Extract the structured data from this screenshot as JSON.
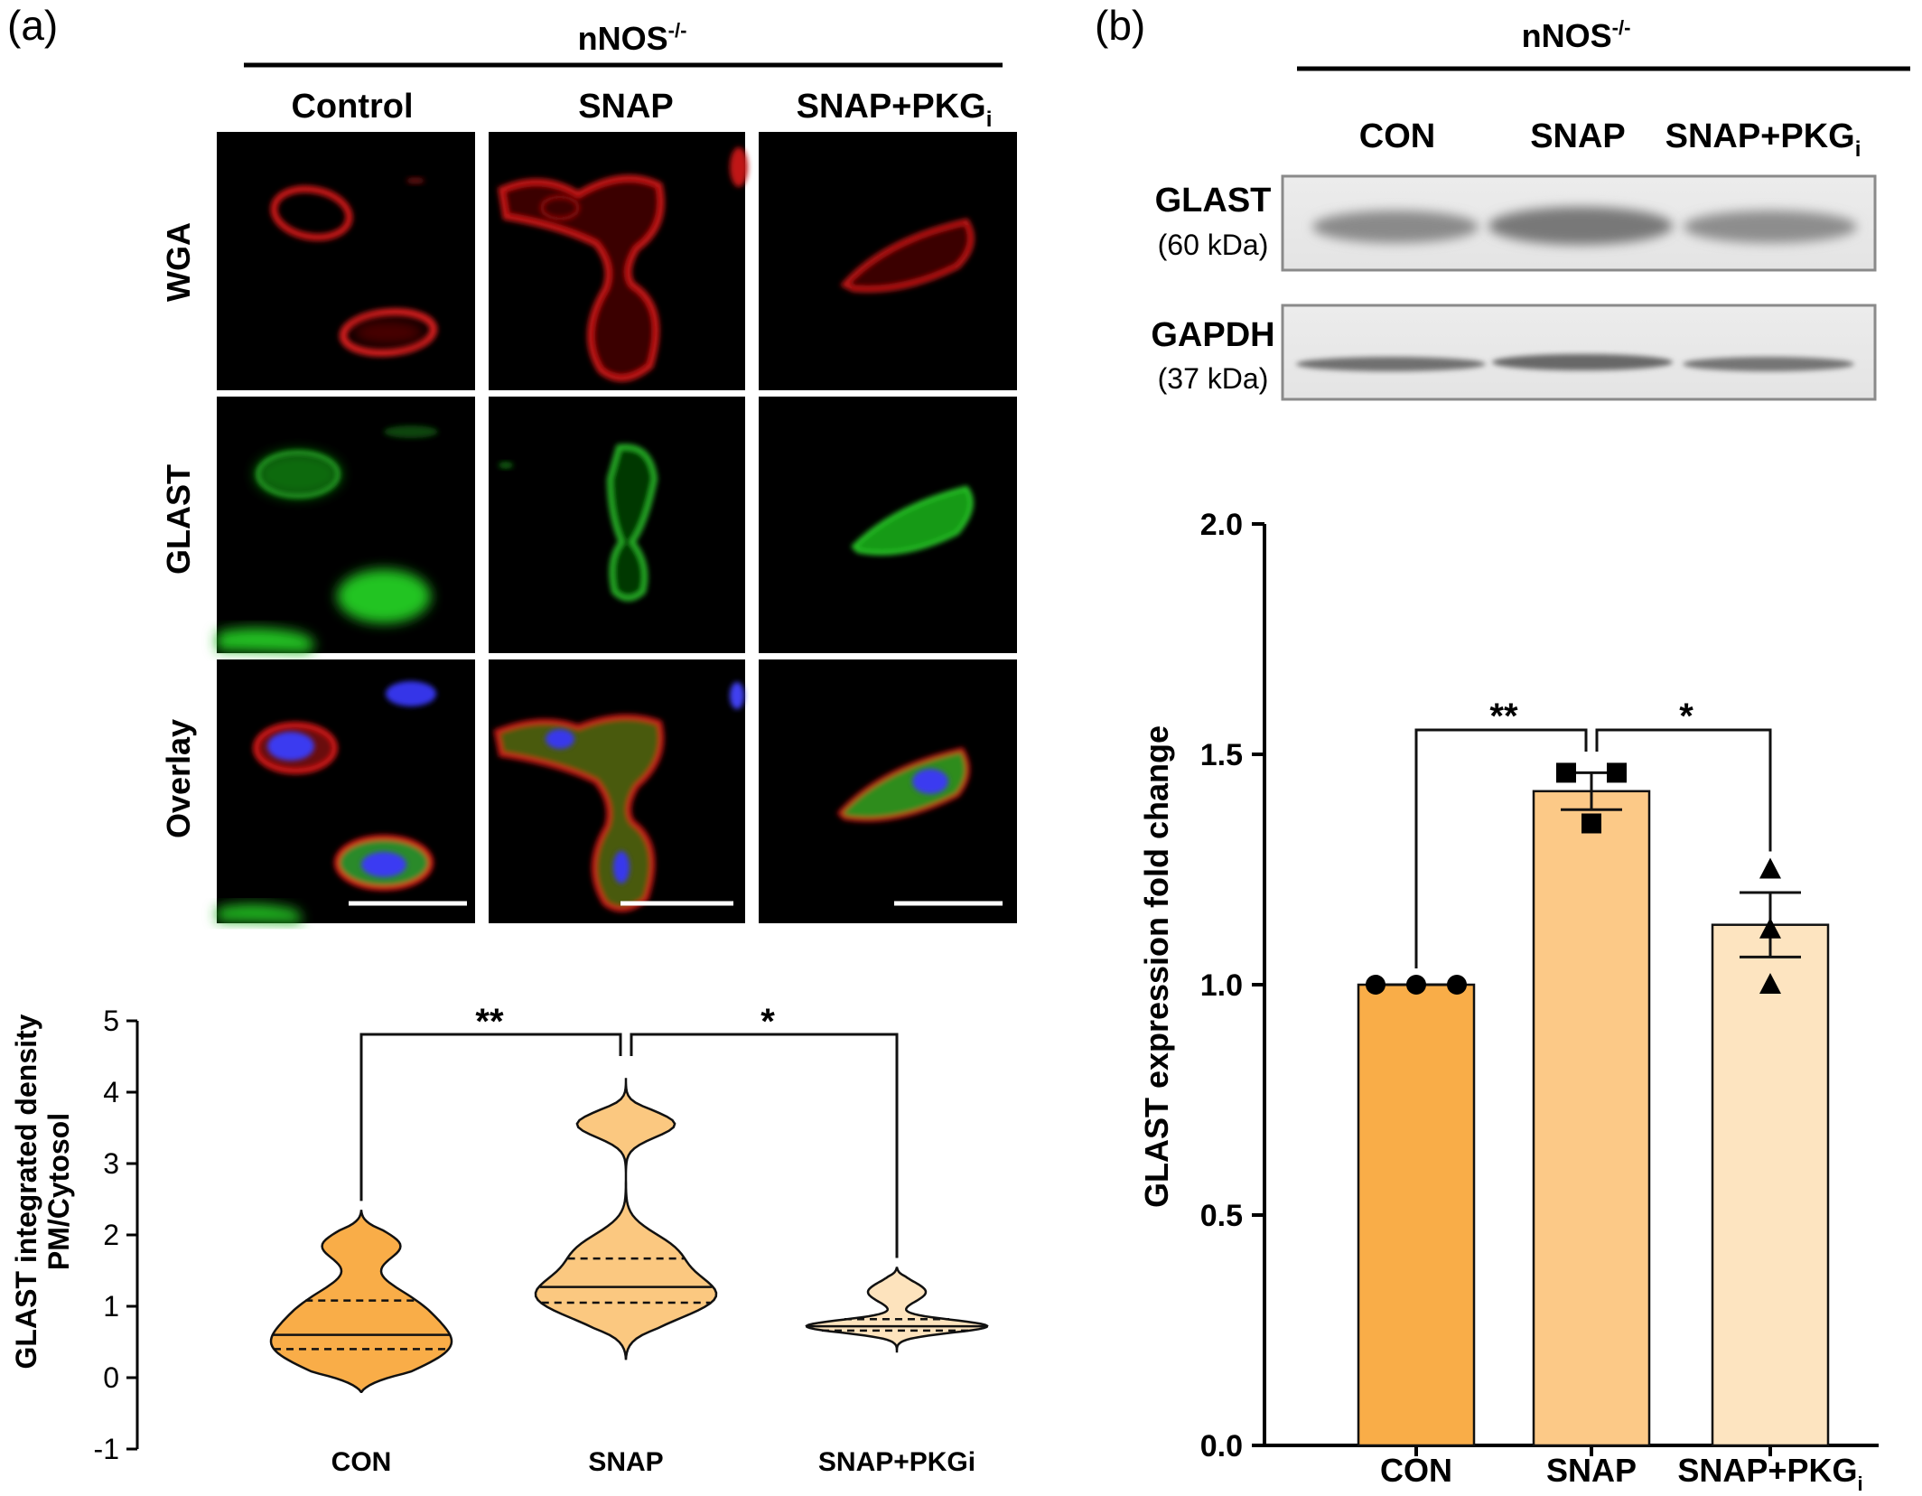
{
  "panel_a": {
    "label": "(a)",
    "header": "nNOS",
    "header_sup": "-/-",
    "columns": [
      "Control",
      "SNAP",
      "SNAP+PKG"
    ],
    "column_sub": "i",
    "rows": [
      "WGA",
      "GLAST",
      "Overlay"
    ],
    "violin": {
      "ylabel_line1": "GLAST integrated density",
      "ylabel_line2": "PM/Cytosol",
      "sig_left": "**",
      "sig_right": "*"
    }
  },
  "panel_b": {
    "label": "(b)",
    "header": "nNOS",
    "header_sup": "-/-",
    "lanes": [
      "CON",
      "SNAP",
      "SNAP+PKG"
    ],
    "lane_sub": "i",
    "blot1_name": "GLAST",
    "blot1_kda": "(60 kDa)",
    "blot2_name": "GAPDH",
    "blot2_kda": "(37 kDa)",
    "bar": {
      "ylabel": "GLAST expression fold change",
      "sig_left": "**",
      "sig_right": "*",
      "x_sub": "i"
    }
  },
  "chart_data": [
    {
      "type": "violin",
      "categories": [
        "CON",
        "SNAP",
        "SNAP+PKGi"
      ],
      "ylabel": "GLAST integrated density PM/Cytosol",
      "ylim": [
        -1,
        5
      ],
      "yticks": [
        -1,
        0,
        1,
        2,
        3,
        4,
        5
      ],
      "colors": [
        "#f9ad48",
        "#fbc880",
        "#fde3bd"
      ],
      "medians": [
        0.6,
        1.27,
        0.72
      ],
      "q1": [
        0.4,
        1.05,
        0.66
      ],
      "q3": [
        1.08,
        1.67,
        0.82
      ],
      "min": [
        -0.2,
        0.25,
        0.35
      ],
      "max": [
        2.35,
        4.2,
        1.55
      ]
    },
    {
      "type": "bar",
      "categories": [
        "CON",
        "SNAP",
        "SNAP+PKGi"
      ],
      "values": [
        1.0,
        1.42,
        1.13
      ],
      "sem": [
        0.0,
        0.04,
        0.07
      ],
      "points": [
        [
          1.0,
          1.0,
          1.0
        ],
        [
          1.46,
          1.46,
          1.35
        ],
        [
          1.25,
          1.12,
          1.0
        ]
      ],
      "markers": [
        "circle",
        "square",
        "triangle"
      ],
      "colors": [
        "#f9ad48",
        "#fcc987",
        "#fde4c0"
      ],
      "ylabel": "GLAST expression fold change",
      "ylim": [
        0,
        2.0
      ],
      "yticks": [
        0.0,
        0.5,
        1.0,
        1.5,
        2.0
      ]
    }
  ]
}
